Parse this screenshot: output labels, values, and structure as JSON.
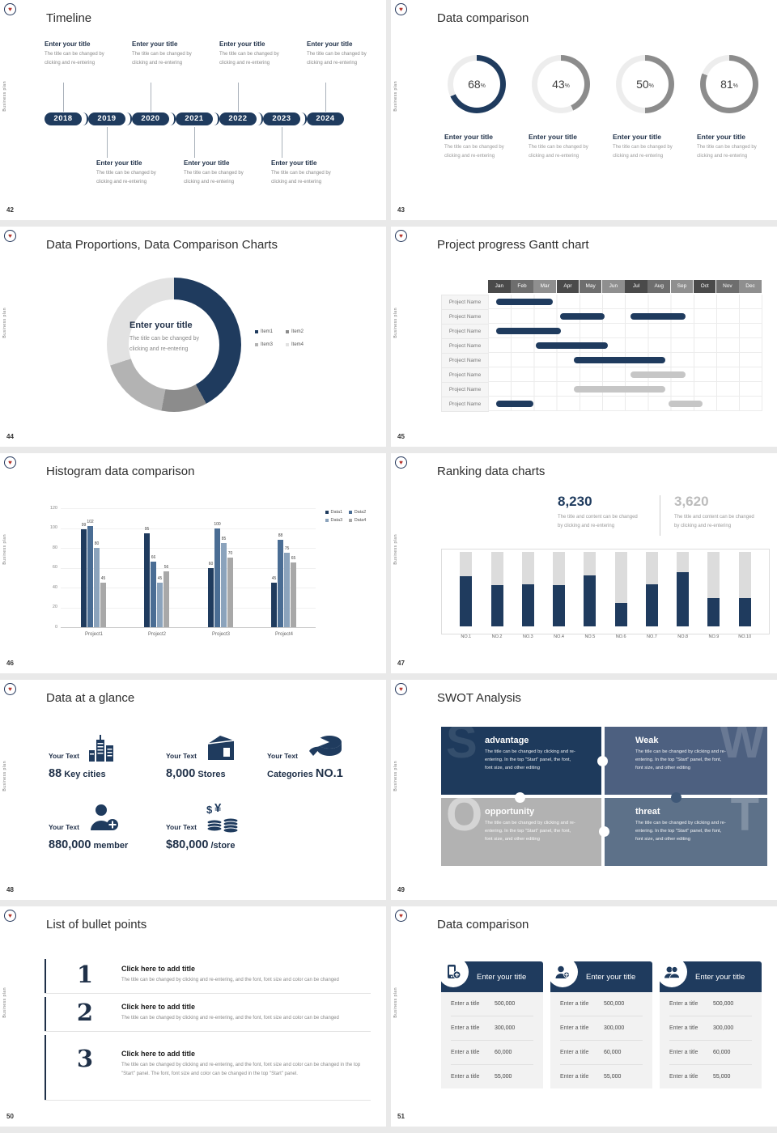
{
  "shared": {
    "brand_vertical_text": "Business plan",
    "logo_glyph": "♥",
    "colors": {
      "navy": "#1f3b5e",
      "steel": "#4a6d94",
      "light_steel": "#8ba3bc",
      "gray": "#a8a8a8",
      "track": "#ededed",
      "gantt_gray": "#c6c6c6"
    }
  },
  "slides": [
    {
      "number": "42",
      "title": "Timeline",
      "timeline": {
        "years": [
          "2018",
          "2019",
          "2020",
          "2021",
          "2022",
          "2023",
          "2024"
        ],
        "entry_title": "Enter your title",
        "entry_desc": [
          "The title can be changed by",
          "clicking and re-entering"
        ],
        "top_entry_years": [
          "2018",
          "2020",
          "2022",
          "2024"
        ],
        "bottom_entry_years": [
          "2019",
          "2021",
          "2023"
        ]
      }
    },
    {
      "number": "43",
      "title": "Data comparison",
      "chart_data": {
        "type": "donut-rings",
        "values": [
          68,
          43,
          50,
          81
        ],
        "unit": "%",
        "highlight_index": 0,
        "item_title": "Enter your title",
        "item_desc": [
          "The title can be changed by",
          "clicking and re-entering"
        ]
      }
    },
    {
      "number": "44",
      "title": "Data Proportions, Data Comparison Charts",
      "center_title": "Enter your title",
      "center_desc": [
        "The title can be changed by",
        "clicking and re-entering"
      ],
      "chart_data": {
        "type": "donut",
        "legend": [
          "Item1",
          "Item2",
          "Item3",
          "Item4"
        ],
        "values": [
          42,
          11,
          17,
          30
        ],
        "colors": [
          "#1f3b5e",
          "#8c8c8c",
          "#b3b3b3",
          "#e2e2e2"
        ]
      }
    },
    {
      "number": "45",
      "title": "Project progress Gantt chart",
      "chart_data": {
        "type": "gantt",
        "months": [
          "Jan",
          "Feb",
          "Mar",
          "Apr",
          "May",
          "Jun",
          "Jul",
          "Aug",
          "Sep",
          "Oct",
          "Nov",
          "Dec"
        ],
        "row_label": "Project Name",
        "rows": [
          {
            "bars": [
              {
                "start": 0.35,
                "end": 2.85,
                "color": "navy"
              }
            ]
          },
          {
            "bars": [
              {
                "start": 3.15,
                "end": 5.1,
                "color": "navy"
              },
              {
                "start": 6.25,
                "end": 8.65,
                "color": "navy"
              }
            ]
          },
          {
            "bars": [
              {
                "start": 0.35,
                "end": 3.2,
                "color": "navy"
              }
            ]
          },
          {
            "bars": [
              {
                "start": 2.1,
                "end": 5.25,
                "color": "navy"
              }
            ]
          },
          {
            "bars": [
              {
                "start": 3.75,
                "end": 7.75,
                "color": "navy"
              }
            ]
          },
          {
            "bars": [
              {
                "start": 6.25,
                "end": 8.65,
                "color": "gray"
              }
            ]
          },
          {
            "bars": [
              {
                "start": 3.75,
                "end": 7.75,
                "color": "gray"
              }
            ]
          },
          {
            "bars": [
              {
                "start": 0.35,
                "end": 2.0,
                "color": "navy"
              },
              {
                "start": 7.9,
                "end": 9.4,
                "color": "gray"
              }
            ]
          }
        ]
      }
    },
    {
      "number": "46",
      "title": "Histogram data comparison",
      "chart_data": {
        "type": "bar",
        "categories": [
          "Project1",
          "Project2",
          "Project3",
          "Project4"
        ],
        "series": [
          {
            "name": "Data1",
            "values": [
              99,
              95,
              60,
              45
            ]
          },
          {
            "name": "Data2",
            "values": [
              102,
              66,
              100,
              88
            ]
          },
          {
            "name": "Data3",
            "values": [
              80,
              45,
              85,
              75
            ]
          },
          {
            "name": "Data4",
            "values": [
              45,
              56,
              70,
              65
            ]
          }
        ],
        "colors": [
          "#1f3b5e",
          "#4a6d94",
          "#8ba3bc",
          "#a8a8a8"
        ],
        "ylim": [
          0,
          120
        ],
        "ytick": 20,
        "legend_position": "top-right"
      }
    },
    {
      "number": "47",
      "title": "Ranking data charts",
      "stats": [
        {
          "value": "8,230",
          "desc": [
            "The title and content can be changed",
            "by clicking and re-entering"
          ]
        },
        {
          "value": "3,620",
          "desc": [
            "The title and content can be changed",
            "by clicking and re-entering"
          ]
        }
      ],
      "chart_data": {
        "type": "ranking-bar",
        "categories": [
          "NO.1",
          "NO.2",
          "NO.3",
          "NO.4",
          "NO.5",
          "NO.6",
          "NO.7",
          "NO.8",
          "NO.9",
          "NO.10"
        ],
        "values_pct": [
          67,
          55,
          57,
          55,
          68,
          32,
          57,
          73,
          38,
          38
        ],
        "max_pct": 100
      }
    },
    {
      "number": "48",
      "title": "Data at a glance",
      "stats": [
        {
          "label": "Your Text",
          "icon": "city-icon",
          "big": "88",
          "suffix": " Key cities"
        },
        {
          "label": "Your Text",
          "icon": "store-icon",
          "big": "8,000",
          "suffix": " Stores"
        },
        {
          "label": "Your Text",
          "icon": "pie-icon",
          "prefix": "Categories ",
          "big": "NO.1"
        },
        {
          "label": "Your Text",
          "icon": "member-icon",
          "big": "880,000",
          "suffix": " member"
        },
        {
          "label": "Your Text",
          "icon": "coins-icon",
          "big": "$80,000",
          "suffix": " /store"
        }
      ]
    },
    {
      "number": "49",
      "title": "SWOT Analysis",
      "quads": [
        {
          "letter": "S",
          "heading": "advantage",
          "color": "#1e3a5c",
          "body": "The title can be changed by clicking and re-entering. In the top \"Start\" panel, the font, font size, and other editing"
        },
        {
          "letter": "W",
          "heading": "Weak",
          "color": "#4d6080",
          "body": "The title can be changed by clicking and re-entering. In the top \"Start\" panel, the font, font size, and other editing"
        },
        {
          "letter": "O",
          "heading": "opportunity",
          "color": "#b2b2b2",
          "body": "The title can be changed by clicking and re-entering. In the top \"Start\" panel, the font, font size, and other editing"
        },
        {
          "letter": "T",
          "heading": "threat",
          "color": "#5d7189",
          "body": "The title can be changed by clicking and re-entering. In the top \"Start\" panel, the font, font size, and other editing"
        }
      ]
    },
    {
      "number": "50",
      "title": "List of bullet points",
      "items": [
        {
          "num": "1",
          "heading": "Click here to add title",
          "body": "The title can be changed by clicking and re-entering, and the font, font size and color can be changed"
        },
        {
          "num": "2",
          "heading": "Click here to add title",
          "body": "The title can be changed by clicking and re-entering, and the font, font size and color can be changed"
        },
        {
          "num": "3",
          "heading": "Click here to add title",
          "body": "The title can be changed by clicking and re-entering, and the font, font size and color can be changed in the top \"Start\" panel. The font, font size and color can be changed in the top \"Start\" panel."
        }
      ]
    },
    {
      "number": "51",
      "title": "Data comparison",
      "cards": [
        {
          "icon": "mobile-user-icon",
          "heading": "Enter your title",
          "rows": [
            [
              "Enter a title",
              "500,000"
            ],
            [
              "Enter a title",
              "300,000"
            ],
            [
              "Enter a title",
              "60,000"
            ],
            [
              "Enter a title",
              "55,000"
            ]
          ]
        },
        {
          "icon": "person-plus-icon",
          "heading": "Enter your title",
          "rows": [
            [
              "Enter a title",
              "500,000"
            ],
            [
              "Enter a title",
              "300,000"
            ],
            [
              "Enter a title",
              "60,000"
            ],
            [
              "Enter a title",
              "55,000"
            ]
          ]
        },
        {
          "icon": "two-people-icon",
          "heading": "Enter your title",
          "rows": [
            [
              "Enter a title",
              "500,000"
            ],
            [
              "Enter a title",
              "300,000"
            ],
            [
              "Enter a title",
              "60,000"
            ],
            [
              "Enter a title",
              "55,000"
            ]
          ]
        }
      ]
    }
  ]
}
